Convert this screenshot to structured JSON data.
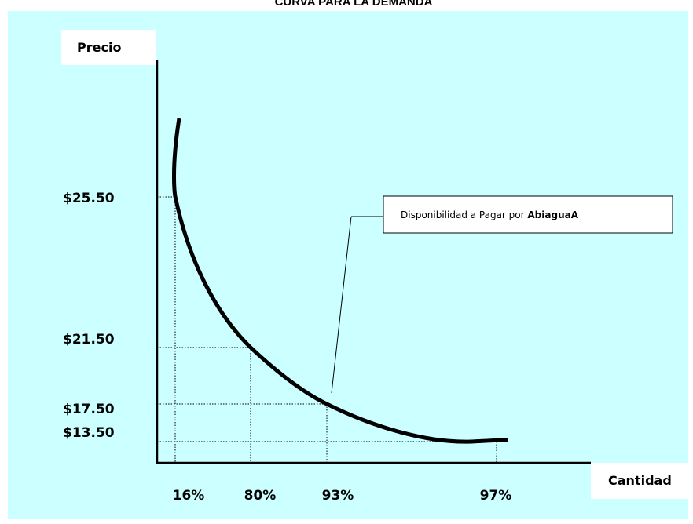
{
  "chart_data": {
    "type": "line",
    "title": "CURVA PARA LA DEMANDA",
    "ylabel": "Precio",
    "xlabel": "Cantidad",
    "y_ticks": [
      "$25.50",
      "$21.50",
      "$17.50",
      "$13.50"
    ],
    "x_ticks": [
      "16%",
      "80%",
      "93%",
      "97%"
    ],
    "points": [
      {
        "x": "16%",
        "y": "$25.50"
      },
      {
        "x": "80%",
        "y": "$21.50"
      },
      {
        "x": "93%",
        "y": "$17.50"
      },
      {
        "x": "97%",
        "y": "$13.50"
      }
    ],
    "grid": false,
    "guide_lines": "dotted",
    "annotation": {
      "text_prefix": "Disponibilidad a Pagar por ",
      "text_bold": "AbiaguaA"
    },
    "colors": {
      "plot_background": "#ccffff",
      "curve": "#000000",
      "label_box": "#ffffff"
    }
  }
}
